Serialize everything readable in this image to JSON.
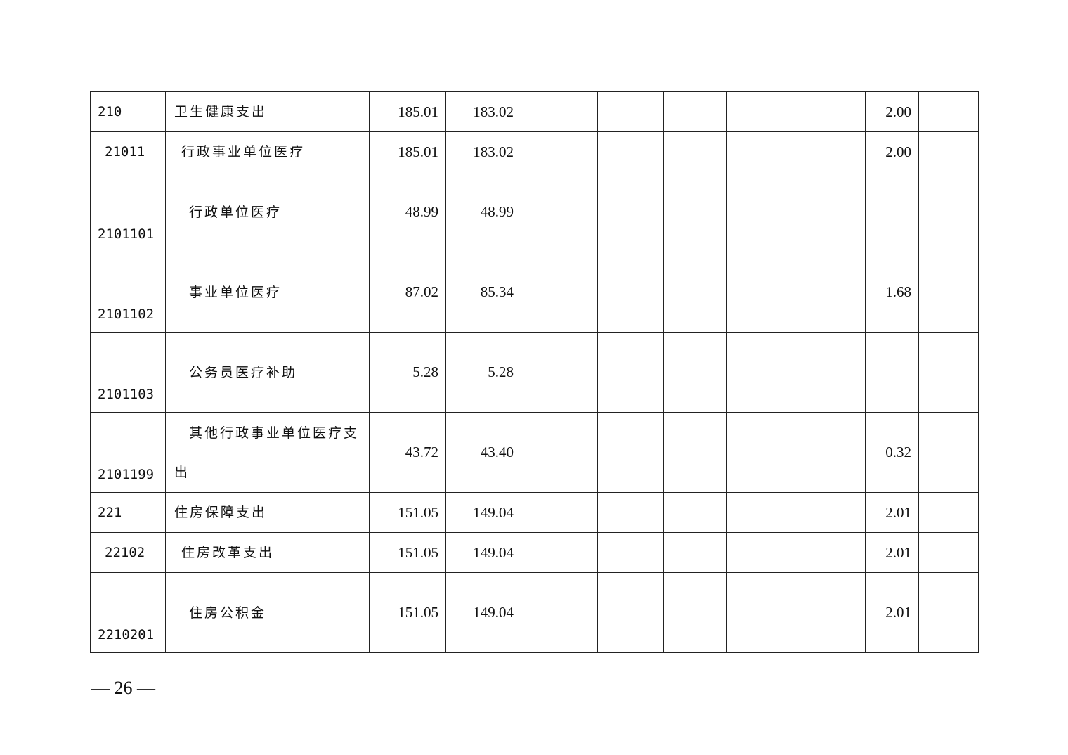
{
  "rows": [
    {
      "code": "210",
      "name": "卫生健康支出",
      "v1": "185.01",
      "v2": "183.02",
      "v9": "2.00",
      "level": 1
    },
    {
      "code": "21011",
      "name": "行政事业单位医疗",
      "v1": "185.01",
      "v2": "183.02",
      "v9": "2.00",
      "level": 2
    },
    {
      "code": "2101101",
      "name": "行政单位医疗",
      "v1": "48.99",
      "v2": "48.99",
      "v9": "",
      "level": 3
    },
    {
      "code": "2101102",
      "name": "事业单位医疗",
      "v1": "87.02",
      "v2": "85.34",
      "v9": "1.68",
      "level": 3
    },
    {
      "code": "2101103",
      "name": "公务员医疗补助",
      "v1": "5.28",
      "v2": "5.28",
      "v9": "",
      "level": 3
    },
    {
      "code": "2101199",
      "name": "其他行政事业单位医疗支出",
      "v1": "43.72",
      "v2": "43.40",
      "v9": "0.32",
      "level": 3
    },
    {
      "code": "221",
      "name": "住房保障支出",
      "v1": "151.05",
      "v2": "149.04",
      "v9": "2.01",
      "level": 1
    },
    {
      "code": "22102",
      "name": "住房改革支出",
      "v1": "151.05",
      "v2": "149.04",
      "v9": "2.01",
      "level": 2
    },
    {
      "code": "2210201",
      "name": "住房公积金",
      "v1": "151.05",
      "v2": "149.04",
      "v9": "2.01",
      "level": 3
    }
  ],
  "footer": {
    "page_number": "— 26 —"
  }
}
